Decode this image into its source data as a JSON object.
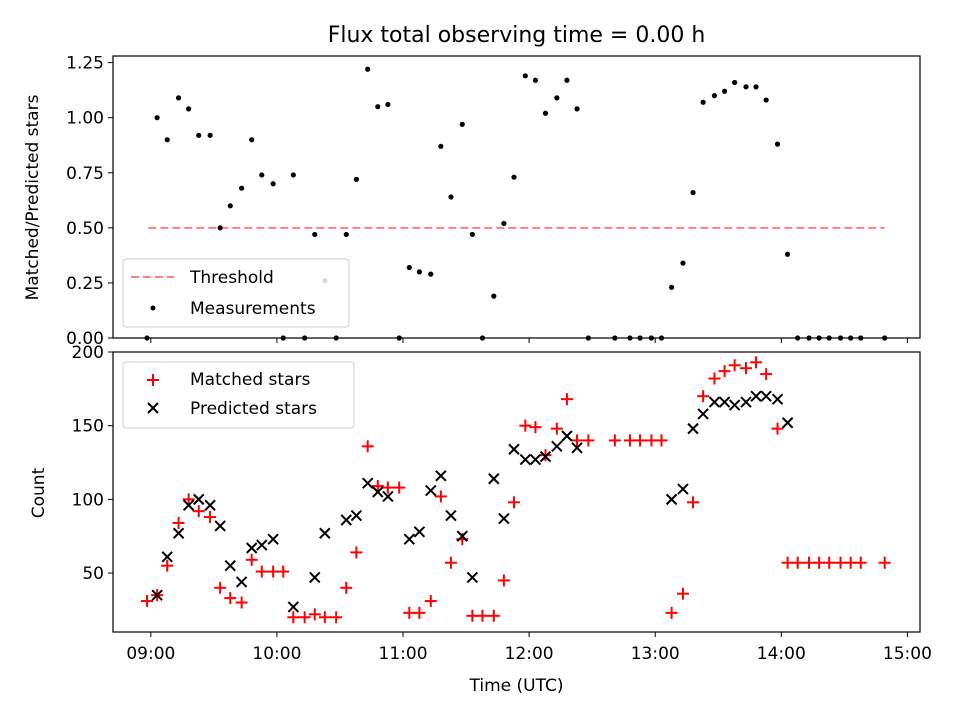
{
  "chart_data": [
    {
      "type": "scatter",
      "title": "Flux total observing time = 0.00 h",
      "xlabel": "",
      "ylabel": "Matched/Predicted stars",
      "ylim": [
        0,
        1.28
      ],
      "yticks": [
        0,
        0.25,
        0.5,
        0.75,
        1.0,
        1.25
      ],
      "ytick_labels": [
        "0.00",
        "0.25",
        "0.50",
        "0.75",
        "1.00",
        "1.25"
      ],
      "xlim": [
        8.7,
        15.1
      ],
      "xticks": [
        9,
        10,
        11,
        12,
        13,
        14,
        15
      ],
      "xtick_labels": [
        "09:00",
        "10:00",
        "11:00",
        "12:00",
        "13:00",
        "14:00",
        "15:00"
      ],
      "legend_position": "lower-left",
      "series": [
        {
          "name": "Threshold",
          "style": "dashed-line",
          "color": "#ff8080",
          "x": [
            8.98,
            14.82
          ],
          "y": [
            0.5,
            0.5
          ]
        },
        {
          "name": "Measurements",
          "style": "dot",
          "color": "#000000",
          "x": [
            8.97,
            9.05,
            9.13,
            9.22,
            9.3,
            9.38,
            9.47,
            9.55,
            9.63,
            9.72,
            9.8,
            9.88,
            9.97,
            10.05,
            10.13,
            10.22,
            10.3,
            10.38,
            10.47,
            10.55,
            10.63,
            10.72,
            10.8,
            10.88,
            10.97,
            11.05,
            11.13,
            11.22,
            11.3,
            11.38,
            11.47,
            11.55,
            11.63,
            11.72,
            11.8,
            11.88,
            11.97,
            12.05,
            12.13,
            12.22,
            12.3,
            12.38,
            12.47,
            12.68,
            12.8,
            12.88,
            12.97,
            13.05,
            13.13,
            13.22,
            13.3,
            13.38,
            13.47,
            13.55,
            13.63,
            13.72,
            13.8,
            13.88,
            13.97,
            14.05,
            14.13,
            14.22,
            14.3,
            14.38,
            14.47,
            14.55,
            14.63,
            14.82
          ],
          "y": [
            0.0,
            1.0,
            0.9,
            1.09,
            1.04,
            0.92,
            0.92,
            0.5,
            0.6,
            0.68,
            0.9,
            0.74,
            0.7,
            0.0,
            0.74,
            0.0,
            0.47,
            0.26,
            0.0,
            0.47,
            0.72,
            1.22,
            1.05,
            1.06,
            0.0,
            0.32,
            0.3,
            0.29,
            0.87,
            0.64,
            0.97,
            0.47,
            0.0,
            0.19,
            0.52,
            0.73,
            1.19,
            1.17,
            1.02,
            1.09,
            1.17,
            1.04,
            0.0,
            0.0,
            0.0,
            0.0,
            0.0,
            0.0,
            0.23,
            0.34,
            0.66,
            1.07,
            1.1,
            1.12,
            1.16,
            1.14,
            1.14,
            1.08,
            0.88,
            0.38,
            0.0,
            0.0,
            0.0,
            0.0,
            0.0,
            0.0,
            0.0,
            0.0
          ]
        }
      ]
    },
    {
      "type": "scatter",
      "title": "",
      "xlabel": "Time (UTC)",
      "ylabel": "Count",
      "ylim": [
        10,
        200
      ],
      "yticks": [
        50,
        100,
        150,
        200
      ],
      "ytick_labels": [
        "50",
        "100",
        "150",
        "200"
      ],
      "xlim": [
        8.7,
        15.1
      ],
      "xticks": [
        9,
        10,
        11,
        12,
        13,
        14,
        15
      ],
      "xtick_labels": [
        "09:00",
        "10:00",
        "11:00",
        "12:00",
        "13:00",
        "14:00",
        "15:00"
      ],
      "legend_position": "upper-left",
      "series": [
        {
          "name": "Matched stars",
          "style": "plus",
          "color": "#ff0000",
          "x": [
            8.97,
            9.05,
            9.13,
            9.22,
            9.3,
            9.38,
            9.47,
            9.55,
            9.63,
            9.72,
            9.8,
            9.88,
            9.97,
            10.05,
            10.13,
            10.22,
            10.3,
            10.38,
            10.47,
            10.55,
            10.63,
            10.72,
            10.8,
            10.88,
            10.97,
            11.05,
            11.13,
            11.22,
            11.3,
            11.38,
            11.47,
            11.55,
            11.63,
            11.72,
            11.8,
            11.88,
            11.97,
            12.05,
            12.13,
            12.22,
            12.3,
            12.38,
            12.47,
            12.68,
            12.8,
            12.88,
            12.97,
            13.05,
            13.13,
            13.22,
            13.3,
            13.38,
            13.47,
            13.55,
            13.63,
            13.72,
            13.8,
            13.88,
            13.97,
            14.05,
            14.13,
            14.22,
            14.3,
            14.38,
            14.47,
            14.55,
            14.63,
            14.82
          ],
          "y": [
            31,
            35,
            55,
            84,
            100,
            92,
            88,
            40,
            33,
            30,
            59,
            51,
            51,
            51,
            20,
            20,
            22,
            20,
            20,
            40,
            64,
            136,
            109,
            108,
            108,
            23,
            23,
            31,
            102,
            57,
            73,
            21,
            21,
            21,
            45,
            98,
            150,
            149,
            130,
            148,
            168,
            140,
            140,
            140,
            140,
            140,
            140,
            140,
            23,
            36,
            98,
            170,
            182,
            187,
            191,
            189,
            193,
            185,
            148,
            57,
            57,
            57,
            57,
            57,
            57,
            57,
            57,
            57
          ]
        },
        {
          "name": "Predicted stars",
          "style": "x",
          "color": "#000000",
          "x": [
            9.05,
            9.13,
            9.22,
            9.3,
            9.38,
            9.47,
            9.55,
            9.63,
            9.72,
            9.8,
            9.88,
            9.97,
            10.13,
            10.3,
            10.38,
            10.55,
            10.63,
            10.72,
            10.8,
            10.88,
            11.05,
            11.13,
            11.22,
            11.3,
            11.38,
            11.47,
            11.55,
            11.72,
            11.8,
            11.88,
            11.97,
            12.05,
            12.13,
            12.22,
            12.3,
            12.38,
            13.13,
            13.22,
            13.3,
            13.38,
            13.47,
            13.55,
            13.63,
            13.72,
            13.8,
            13.88,
            13.97,
            14.05
          ],
          "y": [
            35,
            61,
            77,
            96,
            100,
            96,
            82,
            55,
            44,
            67,
            69,
            73,
            27,
            47,
            77,
            86,
            89,
            111,
            105,
            102,
            73,
            78,
            106,
            116,
            89,
            75,
            47,
            114,
            87,
            134,
            127,
            127,
            129,
            136,
            143,
            135,
            100,
            107,
            148,
            158,
            166,
            166,
            164,
            166,
            170,
            170,
            168,
            152
          ]
        }
      ]
    }
  ]
}
